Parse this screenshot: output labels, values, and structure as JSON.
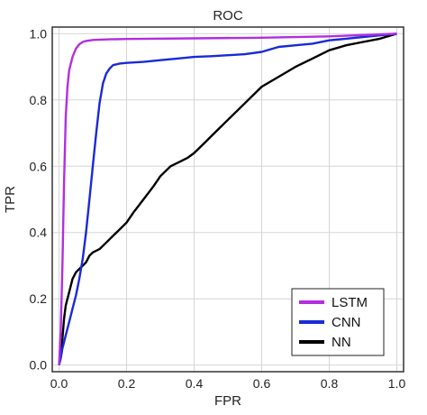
{
  "chart_data": {
    "type": "line",
    "title": "ROC",
    "xlabel": "FPR",
    "ylabel": "TPR",
    "xlim": [
      -0.02,
      1.02
    ],
    "ylim": [
      -0.02,
      1.02
    ],
    "xticks": [
      0.0,
      0.2,
      0.4,
      0.6,
      0.8,
      1.0
    ],
    "xtick_labels": [
      "0.0",
      "0.2",
      "0.4",
      "0.6",
      "0.8",
      "1.0"
    ],
    "yticks": [
      0.0,
      0.2,
      0.4,
      0.6,
      0.8,
      1.0
    ],
    "ytick_labels": [
      "0.0",
      "0.2",
      "0.4",
      "0.6",
      "0.8",
      "1.0"
    ],
    "grid": true,
    "legend_position": "bottom-right",
    "series": [
      {
        "name": "LSTM",
        "color": "#b32ee0",
        "x": [
          0.0,
          0.005,
          0.01,
          0.015,
          0.02,
          0.025,
          0.03,
          0.04,
          0.05,
          0.06,
          0.07,
          0.08,
          0.1,
          0.15,
          0.2,
          0.4,
          0.6,
          0.8,
          1.0
        ],
        "y": [
          0.0,
          0.1,
          0.3,
          0.55,
          0.75,
          0.84,
          0.89,
          0.93,
          0.955,
          0.968,
          0.975,
          0.978,
          0.981,
          0.983,
          0.984,
          0.986,
          0.988,
          0.992,
          1.0
        ]
      },
      {
        "name": "CNN",
        "color": "#1a2ad6",
        "x": [
          0.0,
          0.005,
          0.01,
          0.02,
          0.03,
          0.04,
          0.05,
          0.06,
          0.07,
          0.08,
          0.09,
          0.1,
          0.11,
          0.12,
          0.13,
          0.14,
          0.15,
          0.16,
          0.18,
          0.2,
          0.25,
          0.3,
          0.35,
          0.4,
          0.45,
          0.5,
          0.55,
          0.6,
          0.65,
          0.7,
          0.75,
          0.8,
          0.85,
          0.9,
          0.95,
          1.0
        ],
        "y": [
          0.0,
          0.02,
          0.05,
          0.09,
          0.13,
          0.17,
          0.21,
          0.26,
          0.32,
          0.4,
          0.5,
          0.6,
          0.7,
          0.79,
          0.85,
          0.88,
          0.895,
          0.905,
          0.91,
          0.912,
          0.915,
          0.92,
          0.925,
          0.93,
          0.932,
          0.935,
          0.938,
          0.945,
          0.96,
          0.965,
          0.97,
          0.98,
          0.985,
          0.99,
          0.995,
          1.0
        ]
      },
      {
        "name": "NN",
        "color": "#000000",
        "x": [
          0.0,
          0.005,
          0.01,
          0.015,
          0.02,
          0.03,
          0.04,
          0.05,
          0.06,
          0.07,
          0.08,
          0.09,
          0.1,
          0.12,
          0.14,
          0.16,
          0.18,
          0.2,
          0.22,
          0.25,
          0.28,
          0.3,
          0.33,
          0.36,
          0.38,
          0.4,
          0.43,
          0.46,
          0.5,
          0.53,
          0.56,
          0.6,
          0.65,
          0.7,
          0.75,
          0.8,
          0.85,
          0.9,
          0.95,
          1.0
        ],
        "y": [
          0.0,
          0.03,
          0.08,
          0.14,
          0.18,
          0.22,
          0.26,
          0.28,
          0.29,
          0.3,
          0.31,
          0.33,
          0.34,
          0.35,
          0.37,
          0.39,
          0.41,
          0.43,
          0.46,
          0.5,
          0.54,
          0.57,
          0.6,
          0.615,
          0.625,
          0.64,
          0.67,
          0.7,
          0.74,
          0.77,
          0.8,
          0.84,
          0.87,
          0.9,
          0.925,
          0.95,
          0.965,
          0.975,
          0.985,
          1.0
        ]
      }
    ]
  }
}
